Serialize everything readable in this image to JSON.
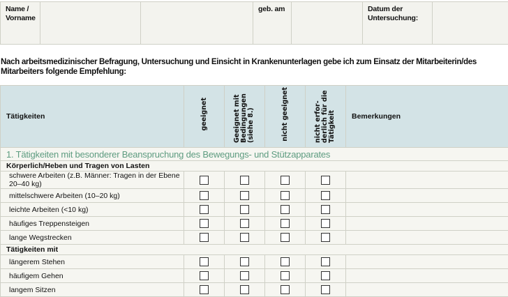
{
  "header": {
    "name_label": "Name / Vorname",
    "dob_label": "geb. am",
    "date_label": "Datum der Untersuchung:"
  },
  "intro": "Nach arbeitsmedizinischer Befragung, Untersuchung und Einsicht in Krankenunterlagen gebe ich zum Einsatz der Mitarbeiterin/des Mitarbeiters folgende Empfehlung:",
  "table": {
    "columns": [
      "Tätigkeiten",
      "geeignet",
      "Geeignet mit Bedingungen (siehe 8.)",
      "nicht geeignet",
      "nicht erfor-derlich für die Tätigkeit",
      "Bemerkungen"
    ],
    "section": "1. Tätigkeiten mit besonderer Beanspruchung des Bewegungs- und Stützapparates",
    "group1": "Körperlich/Heben und Tragen von Lasten",
    "group1_rows": [
      "schwere Arbeiten (z.B. Männer: Tragen in der Ebene 20–40 kg)",
      "mittelschwere Arbeiten (10–20 kg)",
      "leichte Arbeiten (<10 kg)",
      "häufiges Treppensteigen",
      "lange Wegstrecken"
    ],
    "group2": "Tätigkeiten mit",
    "group2_rows": [
      "längerem Stehen",
      "häufigem Gehen",
      "langem Sitzen"
    ]
  }
}
